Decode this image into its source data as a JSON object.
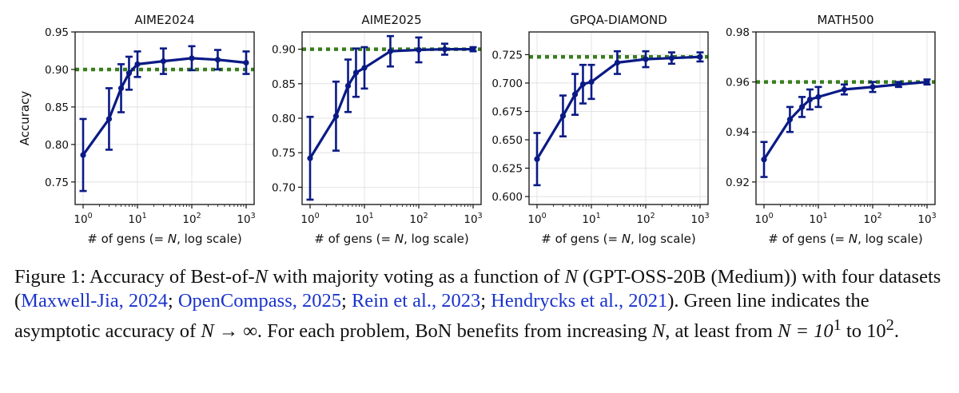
{
  "chart_data": [
    {
      "type": "line",
      "title": "AIME2024",
      "xlabel": "# of gens (= N, log scale)",
      "ylabel": "Accuracy",
      "xscale": "log",
      "xlim": [
        1,
        1000
      ],
      "ylim": [
        0.72,
        0.95
      ],
      "yticks": [
        "0.75",
        "0.80",
        "0.85",
        "0.90",
        "0.95"
      ],
      "xticks": [
        "10^0",
        "10^1",
        "10^2",
        "10^3"
      ],
      "grid": true,
      "asymptote": 0.9,
      "series": [
        {
          "x": [
            1,
            3,
            5,
            7,
            10,
            30,
            100,
            300,
            1000
          ],
          "y": [
            0.786,
            0.834,
            0.875,
            0.895,
            0.907,
            0.911,
            0.915,
            0.913,
            0.909
          ],
          "err": [
            0.048,
            0.041,
            0.032,
            0.022,
            0.017,
            0.017,
            0.016,
            0.013,
            0.015
          ]
        }
      ]
    },
    {
      "type": "line",
      "title": "AIME2025",
      "xlabel": "# of gens (= N, log scale)",
      "ylabel": "",
      "xscale": "log",
      "xlim": [
        1,
        1000
      ],
      "ylim": [
        0.675,
        0.925
      ],
      "yticks": [
        "0.70",
        "0.75",
        "0.80",
        "0.85",
        "0.90"
      ],
      "xticks": [
        "10^0",
        "10^1",
        "10^2",
        "10^3"
      ],
      "grid": true,
      "asymptote": 0.9,
      "series": [
        {
          "x": [
            1,
            3,
            5,
            7,
            10,
            30,
            100,
            300,
            1000
          ],
          "y": [
            0.742,
            0.803,
            0.847,
            0.866,
            0.873,
            0.897,
            0.899,
            0.9,
            0.9
          ],
          "err": [
            0.06,
            0.05,
            0.038,
            0.035,
            0.03,
            0.022,
            0.018,
            0.008,
            0.003
          ]
        }
      ]
    },
    {
      "type": "line",
      "title": "GPQA-DIAMOND",
      "xlabel": "# of gens (= N, log scale)",
      "ylabel": "",
      "xscale": "log",
      "xlim": [
        1,
        1000
      ],
      "ylim": [
        0.593,
        0.745
      ],
      "yticks": [
        "0.600",
        "0.625",
        "0.650",
        "0.675",
        "0.700",
        "0.725"
      ],
      "xticks": [
        "10^0",
        "10^1",
        "10^2",
        "10^3"
      ],
      "grid": true,
      "asymptote": 0.723,
      "series": [
        {
          "x": [
            1,
            3,
            5,
            7,
            10,
            30,
            100,
            300,
            1000
          ],
          "y": [
            0.633,
            0.671,
            0.69,
            0.699,
            0.701,
            0.718,
            0.721,
            0.722,
            0.723
          ],
          "err": [
            0.023,
            0.018,
            0.018,
            0.017,
            0.015,
            0.01,
            0.007,
            0.005,
            0.004
          ]
        }
      ]
    },
    {
      "type": "line",
      "title": "MATH500",
      "xlabel": "# of gens (= N, log scale)",
      "ylabel": "",
      "xscale": "log",
      "xlim": [
        1,
        1000
      ],
      "ylim": [
        0.911,
        0.98
      ],
      "yticks": [
        "0.92",
        "0.94",
        "0.96",
        "0.98"
      ],
      "xticks": [
        "10^0",
        "10^1",
        "10^2",
        "10^3"
      ],
      "grid": true,
      "asymptote": 0.96,
      "series": [
        {
          "x": [
            1,
            3,
            5,
            7,
            10,
            30,
            100,
            300,
            1000
          ],
          "y": [
            0.929,
            0.945,
            0.95,
            0.953,
            0.954,
            0.957,
            0.958,
            0.959,
            0.96
          ],
          "err": [
            0.007,
            0.005,
            0.004,
            0.004,
            0.004,
            0.002,
            0.002,
            0.001,
            0.001
          ]
        }
      ]
    }
  ],
  "colors": {
    "series": "#0a1a85",
    "asymptote": "#3a7d1e",
    "grid": "#dddddd",
    "axis": "#111111"
  },
  "caption": {
    "label": "Figure 1:",
    "t1": " Accuracy of Best-of-",
    "n1": "N",
    "t2": " with majority voting as a function of ",
    "n2": "N",
    "t3": " (GPT-OSS-20B (Medium)) with four datasets (",
    "c1": "Maxwell-Jia, 2024",
    "s1": "; ",
    "c2": "OpenCompass, 2025",
    "s2": "; ",
    "c3": "Rein et al., 2023",
    "s3": "; ",
    "c4": "Hendrycks et al., 2021",
    "t4": ").  Green line indicates the asymptotic accuracy of ",
    "m1": "N → ∞",
    "t5": ". For each problem, BoN benefits from increasing ",
    "n3": "N",
    "t6": ", at least from ",
    "m2": "N = 10",
    "e1": "1",
    "t7": " to 10",
    "e2": "2",
    "t8": "."
  }
}
